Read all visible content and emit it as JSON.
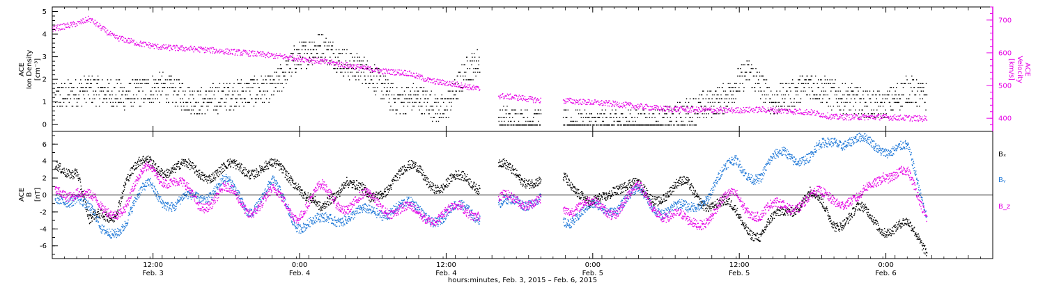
{
  "colors": {
    "black": "#000000",
    "magenta": "#e600e6",
    "blue": "#1e78d8",
    "frame": "#000000"
  },
  "xaxis": {
    "ticks": [
      {
        "t": 8.25,
        "time": "12:00",
        "date": "Feb. 3"
      },
      {
        "t": 20.25,
        "time": "0:00",
        "date": "Feb. 4"
      },
      {
        "t": 32.25,
        "time": "12:00",
        "date": "Feb. 4"
      },
      {
        "t": 44.25,
        "time": "0:00",
        "date": "Feb. 5"
      },
      {
        "t": 56.25,
        "time": "12:00",
        "date": "Feb. 5"
      },
      {
        "t": 68.25,
        "time": "0:00",
        "date": "Feb. 6"
      }
    ],
    "range_hours": [
      0,
      77
    ],
    "title": "hours:minutes,  Feb.  3, 2015  –  Feb.  6, 2015"
  },
  "chart_data": [
    {
      "type": "scatter",
      "panel": "top",
      "ylabel_left_lines": [
        "ACE",
        "Ion Density",
        "[cm⁻³]"
      ],
      "ylabel_right_lines": [
        "ACE",
        "Velocity",
        "[km/s]"
      ],
      "y_left_range": [
        -0.3,
        5.2
      ],
      "y_left_ticks": [
        "0",
        "1",
        "2",
        "3",
        "4",
        "5"
      ],
      "y_right_range": [
        360,
        740
      ],
      "y_right_ticks": [
        "400",
        "500",
        "600",
        "700"
      ],
      "series": [
        {
          "key": "density",
          "color": "black",
          "axis": "left",
          "segments": [
            {
              "start": 0.2,
              "end": 35.0
            },
            {
              "start": 36.5,
              "end": 40.0
            },
            {
              "start": 41.8,
              "end": 71.6
            }
          ],
          "trend": [
            [
              0.2,
              1.2
            ],
            [
              3,
              1.6
            ],
            [
              6,
              1.3
            ],
            [
              9,
              1.7
            ],
            [
              12,
              1.0
            ],
            [
              15,
              1.4
            ],
            [
              18,
              1.6
            ],
            [
              20,
              3.0
            ],
            [
              22,
              3.5
            ],
            [
              24,
              2.7
            ],
            [
              26,
              2.3
            ],
            [
              28,
              1.1
            ],
            [
              30,
              1.2
            ],
            [
              32,
              0.6
            ],
            [
              34,
              2.5
            ],
            [
              35,
              2.8
            ],
            [
              36.5,
              0.2
            ],
            [
              40,
              0.1
            ],
            [
              41.8,
              0.0
            ],
            [
              50,
              0.1
            ],
            [
              55,
              1.2
            ],
            [
              57,
              2.4
            ],
            [
              59,
              1.0
            ],
            [
              62,
              1.8
            ],
            [
              64,
              1.3
            ],
            [
              68,
              0.8
            ],
            [
              70,
              1.6
            ],
            [
              71.6,
              1.2
            ]
          ]
        },
        {
          "key": "velocity",
          "color": "magenta",
          "axis": "right",
          "segments": [
            {
              "start": 0.0,
              "end": 35.0
            },
            {
              "start": 36.5,
              "end": 40.0
            },
            {
              "start": 41.8,
              "end": 71.6
            }
          ],
          "trend": [
            [
              0,
              675
            ],
            [
              2,
              690
            ],
            [
              3,
              705
            ],
            [
              5,
              650
            ],
            [
              7,
              630
            ],
            [
              9,
              618
            ],
            [
              12,
              612
            ],
            [
              16,
              600
            ],
            [
              20,
              585
            ],
            [
              23,
              570
            ],
            [
              27,
              545
            ],
            [
              29,
              540
            ],
            [
              31,
              515
            ],
            [
              33,
              505
            ],
            [
              35,
              490
            ],
            [
              36.5,
              470
            ],
            [
              38,
              465
            ],
            [
              40,
              455
            ],
            [
              42,
              455
            ],
            [
              46,
              445
            ],
            [
              50,
              430
            ],
            [
              55,
              425
            ],
            [
              58,
              428
            ],
            [
              62,
              420
            ],
            [
              64,
              405
            ],
            [
              68,
              405
            ],
            [
              71.6,
              400
            ]
          ]
        }
      ]
    },
    {
      "type": "scatter",
      "panel": "bottom",
      "ylabel_left_lines": [
        "ACE",
        "B",
        "[nT]"
      ],
      "y_range": [
        -7.5,
        7.5
      ],
      "y_ticks": [
        "-6",
        "-4",
        "-2",
        "0",
        "2",
        "4",
        "6"
      ],
      "legend_position": "right",
      "series": [
        {
          "name": "Bₓ",
          "key": "bx",
          "color": "black",
          "segments": [
            {
              "start": 0.2,
              "end": 35.0
            },
            {
              "start": 36.5,
              "end": 40.0
            },
            {
              "start": 41.8,
              "end": 71.6
            }
          ],
          "trend": [
            [
              0.2,
              3.0
            ],
            [
              2,
              3.5
            ],
            [
              3,
              -3.5
            ],
            [
              5,
              -2.0
            ],
            [
              6,
              2.0
            ],
            [
              8,
              4.0
            ],
            [
              10,
              3.0
            ],
            [
              14,
              2.8
            ],
            [
              17,
              3.5
            ],
            [
              20,
              2.0
            ],
            [
              22,
              -2.5
            ],
            [
              24,
              2.5
            ],
            [
              26,
              -1.0
            ],
            [
              28,
              2.5
            ],
            [
              30,
              2.8
            ],
            [
              32,
              1.0
            ],
            [
              34,
              2.0
            ],
            [
              35,
              1.5
            ],
            [
              36.5,
              3.0
            ],
            [
              38,
              3.0
            ],
            [
              40,
              1.0
            ],
            [
              42,
              3.0
            ],
            [
              44,
              -2.0
            ],
            [
              46,
              1.5
            ],
            [
              49,
              0.0
            ],
            [
              52,
              1.0
            ],
            [
              54,
              -1.0
            ],
            [
              56,
              -2.0
            ],
            [
              58,
              -5.0
            ],
            [
              60,
              -1.5
            ],
            [
              62,
              0.0
            ],
            [
              64,
              -3.0
            ],
            [
              66,
              -2.0
            ],
            [
              68,
              -3.5
            ],
            [
              70,
              -4.0
            ],
            [
              71.6,
              -6.0
            ]
          ]
        },
        {
          "name": "Bᵧ",
          "key": "by",
          "color": "blue",
          "segments": [
            {
              "start": 0.2,
              "end": 35.0
            },
            {
              "start": 36.5,
              "end": 40.0
            },
            {
              "start": 41.8,
              "end": 71.6
            }
          ],
          "trend": [
            [
              0.2,
              -1.0
            ],
            [
              2,
              0.5
            ],
            [
              4,
              -4.5
            ],
            [
              6,
              -3.0
            ],
            [
              8,
              1.5
            ],
            [
              10,
              -1.5
            ],
            [
              12,
              0.0
            ],
            [
              14,
              1.5
            ],
            [
              16,
              -1.5
            ],
            [
              18,
              1.0
            ],
            [
              20,
              -3.0
            ],
            [
              22,
              -3.5
            ],
            [
              24,
              -2.0
            ],
            [
              26,
              -2.5
            ],
            [
              28,
              -1.0
            ],
            [
              30,
              -2.0
            ],
            [
              32,
              -2.5
            ],
            [
              34,
              -1.5
            ],
            [
              35,
              -2.0
            ],
            [
              36.5,
              -2.0
            ],
            [
              38,
              0.0
            ],
            [
              40,
              -1.0
            ],
            [
              42,
              -2.5
            ],
            [
              44,
              -2.0
            ],
            [
              46,
              -1.0
            ],
            [
              48,
              0.0
            ],
            [
              50,
              -1.5
            ],
            [
              52,
              -2.0
            ],
            [
              54,
              1.0
            ],
            [
              56,
              4.0
            ],
            [
              58,
              2.0
            ],
            [
              60,
              5.5
            ],
            [
              62,
              4.0
            ],
            [
              64,
              7.0
            ],
            [
              66,
              6.0
            ],
            [
              68,
              6.0
            ],
            [
              70,
              5.0
            ],
            [
              71.6,
              -2.0
            ]
          ]
        },
        {
          "name": "B_z",
          "key": "bz",
          "color": "magenta",
          "segments": [
            {
              "start": 0.2,
              "end": 35.0
            },
            {
              "start": 36.5,
              "end": 40.0
            },
            {
              "start": 41.8,
              "end": 71.6
            }
          ],
          "trend": [
            [
              0.2,
              0.0
            ],
            [
              2,
              1.0
            ],
            [
              4,
              -2.0
            ],
            [
              6,
              -1.0
            ],
            [
              8,
              3.5
            ],
            [
              10,
              1.5
            ],
            [
              12,
              -1.0
            ],
            [
              14,
              0.5
            ],
            [
              16,
              -1.5
            ],
            [
              18,
              0.0
            ],
            [
              20,
              -2.0
            ],
            [
              22,
              0.5
            ],
            [
              24,
              -1.0
            ],
            [
              26,
              -0.5
            ],
            [
              28,
              -1.5
            ],
            [
              30,
              -2.5
            ],
            [
              32,
              -2.0
            ],
            [
              34,
              -2.0
            ],
            [
              35,
              -1.5
            ],
            [
              36.5,
              -1.0
            ],
            [
              38,
              0.0
            ],
            [
              40,
              -1.0
            ],
            [
              42,
              -1.0
            ],
            [
              44,
              -1.5
            ],
            [
              46,
              -1.5
            ],
            [
              48,
              0.5
            ],
            [
              50,
              -2.0
            ],
            [
              52,
              -3.5
            ],
            [
              54,
              -2.0
            ],
            [
              56,
              0.0
            ],
            [
              58,
              -2.5
            ],
            [
              60,
              -1.0
            ],
            [
              62,
              -0.5
            ],
            [
              64,
              0.0
            ],
            [
              66,
              -1.0
            ],
            [
              68,
              3.0
            ],
            [
              70,
              2.0
            ],
            [
              71.6,
              -2.0
            ]
          ]
        }
      ]
    }
  ]
}
